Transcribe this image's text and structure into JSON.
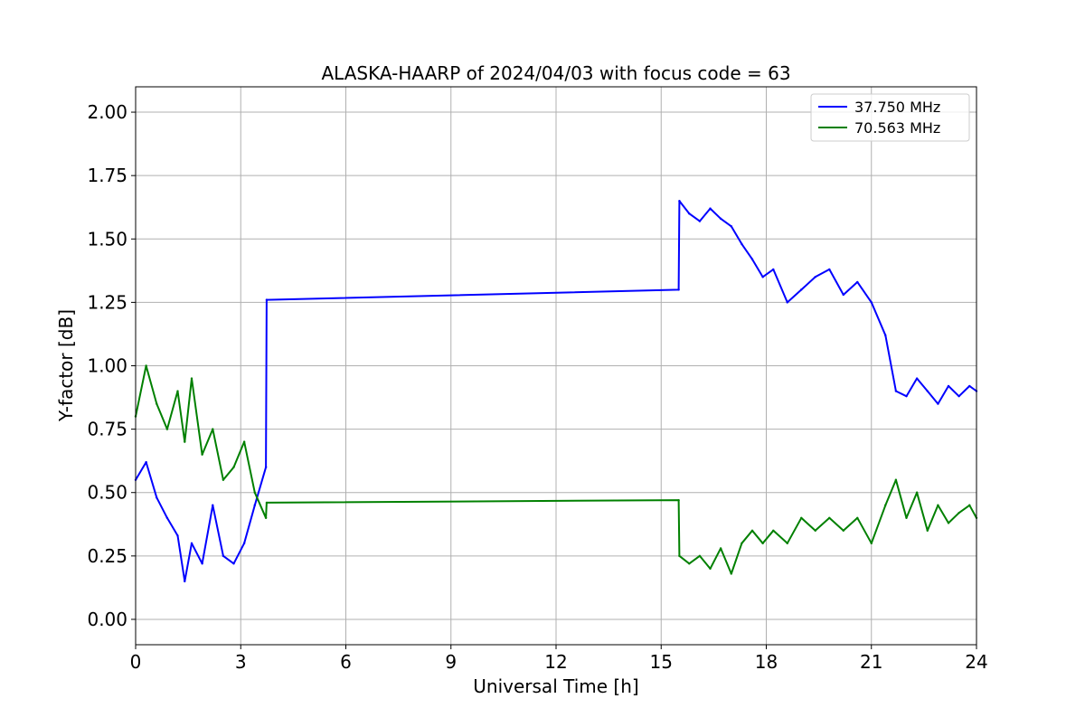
{
  "chart_data": {
    "type": "line",
    "title": "ALASKA-HAARP of 2024/04/03 with focus code = 63",
    "xlabel": "Universal Time [h]",
    "ylabel": "Y-factor [dB]",
    "xlim": [
      0,
      24
    ],
    "ylim": [
      -0.1,
      2.1
    ],
    "xticks": [
      0,
      3,
      6,
      9,
      12,
      15,
      18,
      21,
      24
    ],
    "yticks": [
      0.0,
      0.25,
      0.5,
      0.75,
      1.0,
      1.25,
      1.5,
      1.75,
      2.0
    ],
    "xtick_labels": [
      "0",
      "3",
      "6",
      "9",
      "12",
      "15",
      "18",
      "21",
      "24"
    ],
    "ytick_labels": [
      "0.00",
      "0.25",
      "0.50",
      "0.75",
      "1.00",
      "1.25",
      "1.50",
      "1.75",
      "2.00"
    ],
    "grid": true,
    "legend_position": "top-right",
    "series": [
      {
        "name": "37.750 MHz",
        "color": "#0000ff",
        "x": [
          0.0,
          0.3,
          0.6,
          0.9,
          1.2,
          1.4,
          1.6,
          1.9,
          2.2,
          2.5,
          2.8,
          3.1,
          3.4,
          3.72,
          3.74,
          15.5,
          15.52,
          15.8,
          16.1,
          16.4,
          16.7,
          17.0,
          17.3,
          17.6,
          17.9,
          18.2,
          18.6,
          19.0,
          19.4,
          19.8,
          20.2,
          20.6,
          21.0,
          21.4,
          21.7,
          22.0,
          22.3,
          22.6,
          22.9,
          23.2,
          23.5,
          23.8,
          24.0
        ],
        "y": [
          0.55,
          0.62,
          0.48,
          0.4,
          0.33,
          0.15,
          0.3,
          0.22,
          0.45,
          0.25,
          0.22,
          0.3,
          0.45,
          0.6,
          1.26,
          1.3,
          1.65,
          1.6,
          1.57,
          1.62,
          1.58,
          1.55,
          1.48,
          1.42,
          1.35,
          1.38,
          1.25,
          1.3,
          1.35,
          1.38,
          1.28,
          1.33,
          1.25,
          1.12,
          0.9,
          0.88,
          0.95,
          0.9,
          0.85,
          0.92,
          0.88,
          0.92,
          0.9
        ]
      },
      {
        "name": "70.563 MHz",
        "color": "#008000",
        "x": [
          0.0,
          0.3,
          0.6,
          0.9,
          1.2,
          1.4,
          1.6,
          1.9,
          2.2,
          2.5,
          2.8,
          3.1,
          3.4,
          3.72,
          3.74,
          15.5,
          15.52,
          15.8,
          16.1,
          16.4,
          16.7,
          17.0,
          17.3,
          17.6,
          17.9,
          18.2,
          18.6,
          19.0,
          19.4,
          19.8,
          20.2,
          20.6,
          21.0,
          21.4,
          21.7,
          22.0,
          22.3,
          22.6,
          22.9,
          23.2,
          23.5,
          23.8,
          24.0
        ],
        "y": [
          0.8,
          1.0,
          0.85,
          0.75,
          0.9,
          0.7,
          0.95,
          0.65,
          0.75,
          0.55,
          0.6,
          0.7,
          0.5,
          0.4,
          0.46,
          0.47,
          0.25,
          0.22,
          0.25,
          0.2,
          0.28,
          0.18,
          0.3,
          0.35,
          0.3,
          0.35,
          0.3,
          0.4,
          0.35,
          0.4,
          0.35,
          0.4,
          0.3,
          0.45,
          0.55,
          0.4,
          0.5,
          0.35,
          0.45,
          0.38,
          0.42,
          0.45,
          0.4
        ]
      }
    ]
  }
}
